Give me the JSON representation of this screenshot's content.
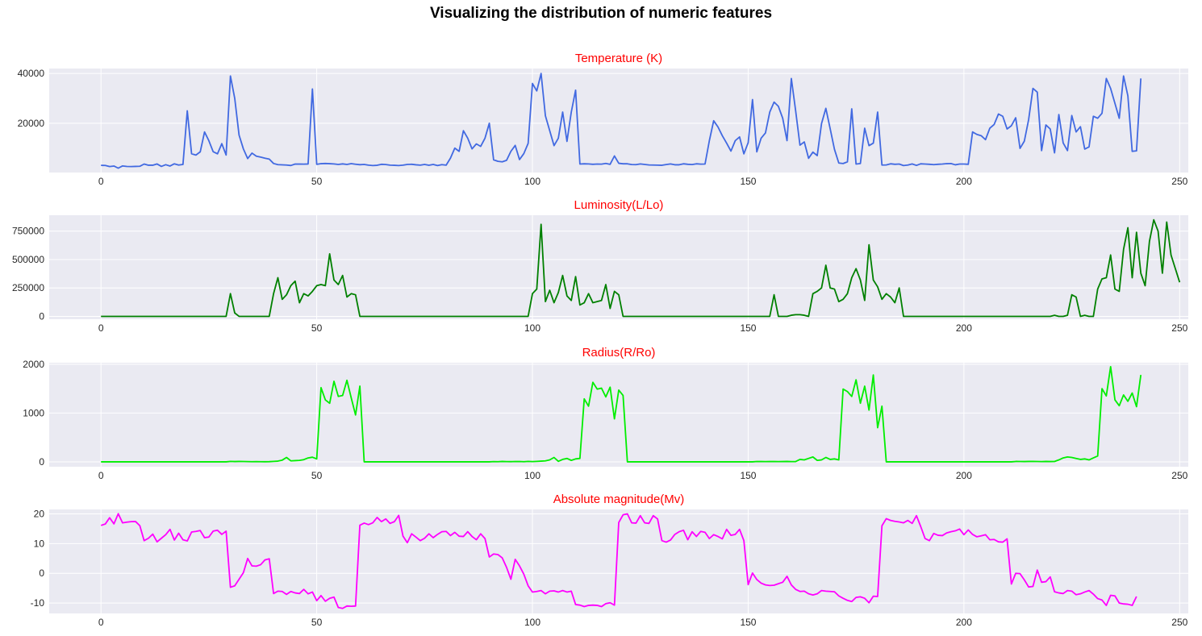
{
  "figure": {
    "title": "Visualizing the distribution of numeric features"
  },
  "chart_data": [
    {
      "type": "line",
      "title": "Temperature (K)",
      "title_color": "#ff0000",
      "color": "#4169e1",
      "grid": true,
      "xlim": [
        -12,
        252
      ],
      "ylim": [
        200,
        42000
      ],
      "xticks": [
        0,
        50,
        100,
        150,
        200,
        250
      ],
      "yticks": [
        20000,
        40000
      ],
      "y": [
        3068,
        3042,
        2600,
        2800,
        1939,
        2840,
        2637,
        2600,
        2650,
        2700,
        3600,
        3129,
        3134,
        3628,
        2650,
        3340,
        2799,
        3692,
        3192,
        3441,
        25000,
        7740,
        7220,
        8500,
        16500,
        12990,
        8570,
        7700,
        11790,
        7230,
        39000,
        30000,
        15276,
        9700,
        5800,
        8000,
        6757,
        6380,
        5936,
        5587,
        3826,
        3365,
        3270,
        3200,
        3008,
        3600,
        3575,
        3574,
        3625,
        33750,
        3490,
        3750,
        3834,
        3749,
        3650,
        3450,
        3660,
        3450,
        3752,
        3535,
        3341,
        3432,
        3150,
        3000,
        3100,
        3500,
        3400,
        3150,
        3100,
        3000,
        3150,
        3450,
        3500,
        3300,
        3150,
        3450,
        3100,
        3450,
        3000,
        3350,
        3150,
        6000,
        10000,
        8700,
        17000,
        14000,
        9700,
        11700,
        10700,
        14000,
        20000,
        5300,
        4700,
        4500,
        5100,
        8700,
        11100,
        5400,
        7800,
        11900,
        36000,
        33000,
        40000,
        23000,
        17000,
        11000,
        14000,
        24500,
        12700,
        24500,
        33300,
        3600,
        3700,
        3650,
        3500,
        3600,
        3550,
        3850,
        3500,
        6850,
        3900,
        3700,
        3700,
        3400,
        3350,
        3650,
        3450,
        3250,
        3200,
        3150,
        3100,
        3400,
        3650,
        3300,
        3300,
        3700,
        3500,
        3400,
        3700,
        3550,
        3600,
        13000,
        21000,
        18500,
        15000,
        12000,
        8800,
        13000,
        14500,
        7700,
        12200,
        29500,
        8500,
        14000,
        16100,
        24500,
        28500,
        26800,
        22000,
        13000,
        38000,
        25000,
        11200,
        12500,
        5900,
        8400,
        7000,
        19900,
        26000,
        17800,
        9500,
        4000,
        3800,
        4500,
        25800,
        3600,
        3800,
        18000,
        11000,
        12000,
        24500,
        3200,
        3250,
        3700,
        3500,
        3600,
        3000,
        3200,
        3650,
        3050,
        3700,
        3600,
        3500,
        3350,
        3500,
        3600,
        3750,
        3800,
        3300,
        3600,
        3600,
        3500,
        16500,
        15500,
        15000,
        13400,
        18000,
        19500,
        23700,
        22800,
        17700,
        19000,
        22200,
        9900,
        12800,
        21500,
        34000,
        32500,
        9000,
        19300,
        17700,
        8100,
        23500,
        12100,
        9000,
        23100,
        16500,
        18600,
        9600,
        10500,
        22800,
        22000,
        24000,
        38000,
        34000,
        28000,
        22000,
        39000,
        31000,
        8700,
        8900,
        38000
      ]
    },
    {
      "type": "line",
      "title": "Luminosity(L/Lo)",
      "title_color": "#ff0000",
      "color": "#008000",
      "grid": true,
      "xlim": [
        -12,
        252
      ],
      "ylim": [
        -25000,
        890000
      ],
      "xticks": [
        0,
        50,
        100,
        150,
        200,
        250
      ],
      "yticks": [
        0,
        250000,
        500000,
        750000
      ],
      "y": [
        0,
        0,
        0,
        0,
        0,
        0,
        0,
        0,
        0,
        0,
        0,
        0,
        0,
        0,
        0,
        0,
        0,
        0,
        0,
        0,
        0,
        0,
        0,
        0,
        0,
        0,
        0,
        0,
        0,
        0,
        200000,
        30000,
        0,
        0,
        0,
        0,
        0,
        0,
        0,
        0,
        200000,
        340000,
        150000,
        190000,
        270000,
        310000,
        120000,
        200000,
        180000,
        220000,
        270000,
        280000,
        270000,
        550000,
        320000,
        280000,
        360000,
        170000,
        200000,
        190000,
        0,
        0,
        0,
        0,
        0,
        0,
        0,
        0,
        0,
        0,
        0,
        0,
        0,
        0,
        0,
        0,
        0,
        0,
        0,
        0,
        0,
        0,
        0,
        0,
        0,
        0,
        0,
        0,
        0,
        0,
        0,
        0,
        0,
        0,
        0,
        0,
        0,
        0,
        0,
        0,
        200000,
        240000,
        810000,
        130000,
        230000,
        120000,
        210000,
        360000,
        180000,
        140000,
        350000,
        100000,
        120000,
        200000,
        120000,
        130000,
        140000,
        280000,
        70000,
        220000,
        190000,
        0,
        0,
        0,
        0,
        0,
        0,
        0,
        0,
        0,
        0,
        0,
        0,
        0,
        0,
        0,
        0,
        0,
        0,
        0,
        0,
        0,
        0,
        0,
        0,
        0,
        0,
        0,
        0,
        0,
        0,
        0,
        0,
        0,
        0,
        0,
        190000,
        0,
        0,
        0,
        10000,
        15000,
        15000,
        10000,
        0,
        200000,
        220000,
        250000,
        450000,
        250000,
        240000,
        130000,
        150000,
        200000,
        340000,
        420000,
        320000,
        140000,
        630000,
        320000,
        260000,
        150000,
        200000,
        170000,
        120000,
        250000,
        0,
        0,
        0,
        0,
        0,
        0,
        0,
        0,
        0,
        0,
        0,
        0,
        0,
        0,
        0,
        0,
        0,
        0,
        0,
        0,
        0,
        0,
        0,
        0,
        0,
        0,
        0,
        0,
        0,
        0,
        0,
        0,
        0,
        0,
        0,
        10000,
        0,
        0,
        10000,
        190000,
        170000,
        0,
        10000,
        0,
        0,
        240000,
        330000,
        340000,
        540000,
        240000,
        220000,
        590000,
        780000,
        340000,
        740000,
        380000,
        270000,
        660000,
        850000,
        750000,
        380000,
        830000,
        540000,
        420000,
        300000
      ]
    },
    {
      "type": "line",
      "title": "Radius(R/Ro)",
      "title_color": "#ff0000",
      "color": "#00ee00",
      "grid": true,
      "xlim": [
        -12,
        252
      ],
      "ylim": [
        -100,
        2030
      ],
      "xticks": [
        0,
        50,
        100,
        150,
        200,
        250
      ],
      "yticks": [
        0,
        1000,
        2000
      ],
      "y": [
        0.17,
        0.15,
        0.1,
        0.16,
        0.1,
        0.2,
        0.13,
        0.1,
        0.1,
        0.1,
        0.11,
        0.11,
        0.12,
        0.13,
        0.1,
        0.12,
        0.1,
        0.13,
        0.12,
        0.1,
        0.01,
        0.01,
        0.01,
        0.01,
        0.01,
        0.01,
        0.01,
        0.01,
        0.01,
        0.01,
        10,
        6,
        8,
        7,
        5,
        3,
        4,
        3,
        2,
        4,
        10,
        15,
        35,
        90,
        20,
        25,
        30,
        45,
        80,
        95,
        60,
        1520,
        1270,
        1200,
        1650,
        1340,
        1360,
        1670,
        1310,
        960,
        1550,
        0.15,
        0.1,
        0.1,
        0.1,
        0.1,
        0.1,
        0.1,
        0.1,
        0.1,
        0.1,
        0.1,
        0.1,
        0.1,
        0.1,
        0.1,
        0.1,
        0.1,
        0.1,
        0.1,
        0.1,
        0.01,
        0.01,
        0.01,
        0.01,
        0.01,
        0.01,
        0.01,
        0.01,
        0.01,
        0.01,
        5,
        3,
        8,
        5,
        4,
        6,
        7,
        3,
        9,
        5,
        10,
        15,
        20,
        40,
        90,
        10,
        50,
        70,
        30,
        60,
        70,
        1290,
        1140,
        1630,
        1490,
        1510,
        1330,
        1530,
        880,
        1470,
        1360,
        0.2,
        0.1,
        0.1,
        0.1,
        0.1,
        0.1,
        0.1,
        0.1,
        0.1,
        0.1,
        0.1,
        0.1,
        0.1,
        0.1,
        0.1,
        0.1,
        0.1,
        0.1,
        0.1,
        0.1,
        0.01,
        0.01,
        0.01,
        0.01,
        0.01,
        0.01,
        0.01,
        0.01,
        0.01,
        0.01,
        7,
        6,
        5,
        6,
        7,
        5,
        6,
        8,
        5,
        6,
        50,
        40,
        70,
        100,
        30,
        40,
        90,
        50,
        60,
        40,
        1490,
        1440,
        1340,
        1680,
        1200,
        1550,
        1060,
        1780,
        700,
        1140,
        0.2,
        0.1,
        0.1,
        0.1,
        0.1,
        0.1,
        0.1,
        0.1,
        0.1,
        0.1,
        0.1,
        0.1,
        0.1,
        0.1,
        0.1,
        0.1,
        0.1,
        0.1,
        0.1,
        0.1,
        0.01,
        0.01,
        0.01,
        0.01,
        0.01,
        0.01,
        0.01,
        0.01,
        0.01,
        0.01,
        8,
        7,
        6,
        8,
        9,
        7,
        5,
        8,
        6,
        7,
        40,
        80,
        100,
        90,
        70,
        50,
        60,
        40,
        80,
        120,
        1500,
        1350,
        1950,
        1270,
        1150,
        1370,
        1240,
        1410,
        1130,
        1780
      ]
    },
    {
      "type": "line",
      "title": "Absolute magnitude(Mv)",
      "title_color": "#ff0000",
      "color": "#ff00ff",
      "grid": true,
      "xlim": [
        -12,
        252
      ],
      "ylim": [
        -13.5,
        21.5
      ],
      "xticks": [
        0,
        50,
        100,
        150,
        200,
        250
      ],
      "yticks": [
        -10,
        0,
        10,
        20
      ],
      "y": [
        16.12,
        16.6,
        18.7,
        16.65,
        20.06,
        16.98,
        17.22,
        17.4,
        17.45,
        16.05,
        11.0,
        11.8,
        13.2,
        10.6,
        11.8,
        13.0,
        14.8,
        11.2,
        13.5,
        11.3,
        10.9,
        13.9,
        14.1,
        14.4,
        12.0,
        12.2,
        14.2,
        14.5,
        13.1,
        14.2,
        -4.7,
        -4.2,
        -2.0,
        0.2,
        5.0,
        2.5,
        2.4,
        2.9,
        4.5,
        4.9,
        -6.8,
        -6.0,
        -6.1,
        -7.1,
        -6.1,
        -6.6,
        -6.8,
        -5.4,
        -6.9,
        -6.3,
        -9.2,
        -7.5,
        -9.4,
        -8.4,
        -8.0,
        -11.5,
        -11.8,
        -11.0,
        -11.1,
        -11.0,
        16.2,
        16.9,
        16.4,
        17.0,
        18.8,
        17.4,
        18.3,
        16.8,
        17.4,
        19.5,
        12.5,
        10.3,
        13.3,
        12.2,
        11.0,
        11.8,
        13.3,
        12.0,
        13.1,
        14.0,
        14.1,
        12.7,
        13.8,
        12.5,
        12.4,
        14.0,
        12.4,
        11.3,
        13.3,
        11.7,
        5.5,
        6.5,
        6.3,
        5.2,
        2.0,
        -2.0,
        4.7,
        2.5,
        -0.3,
        -4.2,
        -6.3,
        -6.1,
        -5.8,
        -6.9,
        -6.0,
        -5.9,
        -6.3,
        -5.8,
        -6.3,
        -6.0,
        -10.5,
        -10.7,
        -11.2,
        -10.8,
        -10.7,
        -10.8,
        -11.2,
        -10.2,
        -9.9,
        -10.7,
        17.1,
        19.7,
        20.0,
        17.0,
        16.9,
        19.4,
        17.0,
        16.8,
        19.4,
        18.3,
        11.0,
        10.5,
        11.2,
        13.1,
        14.0,
        14.5,
        11.3,
        14.0,
        12.4,
        14.1,
        13.8,
        11.7,
        13.0,
        12.4,
        11.6,
        14.8,
        12.8,
        13.1,
        14.8,
        11.0,
        -3.8,
        0.1,
        -2.1,
        -3.3,
        -3.9,
        -4.1,
        -4.0,
        -3.5,
        -3.0,
        -1.0,
        -3.9,
        -5.4,
        -6.1,
        -6.0,
        -6.9,
        -7.3,
        -6.9,
        -5.8,
        -6.0,
        -6.1,
        -6.2,
        -7.6,
        -8.4,
        -9.1,
        -9.5,
        -8.1,
        -7.9,
        -8.4,
        -9.9,
        -7.7,
        -7.8,
        16.0,
        18.4,
        17.8,
        17.5,
        17.3,
        17.0,
        17.8,
        16.8,
        19.4,
        15.7,
        11.7,
        11.0,
        13.4,
        12.8,
        12.7,
        13.6,
        14.0,
        14.3,
        14.9,
        13.0,
        14.6,
        13.1,
        12.3,
        12.6,
        13.0,
        11.3,
        11.4,
        10.6,
        10.5,
        11.6,
        -3.6,
        0.0,
        -0.1,
        -2.2,
        -4.6,
        -4.4,
        1.1,
        -3.0,
        -2.8,
        -1.2,
        -6.2,
        -6.6,
        -6.8,
        -5.8,
        -6.0,
        -7.2,
        -6.9,
        -6.3,
        -5.8,
        -7.0,
        -8.5,
        -9.0,
        -10.8,
        -7.4,
        -7.6,
        -10.0,
        -10.3,
        -10.4,
        -10.8,
        -7.8
      ]
    }
  ]
}
